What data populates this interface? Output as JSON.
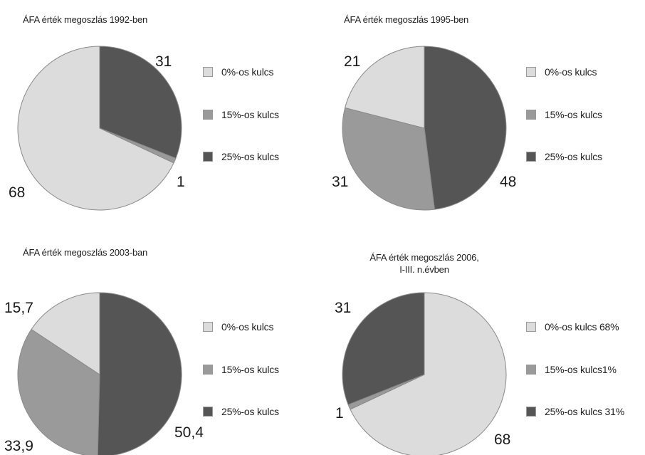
{
  "colors": {
    "zero": "#dcdcdc",
    "fifteen": "#9a9a9a",
    "twentyfive": "#555555",
    "stroke": "#8a8a8a"
  },
  "chart_data": [
    {
      "type": "pie",
      "title": "ÁFA érték megoszlás 1992-ben",
      "title_lines": [
        "ÁFA érték megoszlás 1992-ben"
      ],
      "categories": [
        "0%-os kulcs",
        "15%-os kulcs",
        "25%-os kulcs"
      ],
      "values": [
        68,
        1,
        31
      ],
      "data_labels": [
        "68",
        "1",
        "31"
      ],
      "legend": [
        "0%-os kulcs",
        "15%-os kulcs",
        "25%-os kulcs"
      ],
      "legend_position": "right"
    },
    {
      "type": "pie",
      "title": "ÁFA érték megoszlás 1995-ben",
      "title_lines": [
        "ÁFA érték megoszlás 1995-ben"
      ],
      "categories": [
        "0%-os kulcs",
        "15%-os kulcs",
        "25%-os kulcs"
      ],
      "values": [
        21,
        31,
        48
      ],
      "data_labels": [
        "21",
        "31",
        "48"
      ],
      "legend": [
        "0%-os kulcs",
        "15%-os kulcs",
        "25%-os kulcs"
      ],
      "legend_position": "right"
    },
    {
      "type": "pie",
      "title": "ÁFA érték megoszlás 2003-ban",
      "title_lines": [
        "ÁFA érték megoszlás 2003-ban"
      ],
      "categories": [
        "0%-os kulcs",
        "15%-os kulcs",
        "25%-os kulcs"
      ],
      "values": [
        15.7,
        33.9,
        50.4
      ],
      "data_labels": [
        "15,7",
        "33,9",
        "50,4"
      ],
      "legend": [
        "0%-os kulcs",
        "15%-os kulcs",
        "25%-os kulcs"
      ],
      "legend_position": "right"
    },
    {
      "type": "pie",
      "title": "ÁFA érték megoszlás 2006, I-III. n.évben",
      "title_lines": [
        "ÁFA érték megoszlás 2006,",
        "I-III. n.évben"
      ],
      "categories": [
        "0%-os kulcs",
        "15%-os kulcs",
        "25%-os kulcs"
      ],
      "values": [
        68,
        1,
        31
      ],
      "data_labels": [
        "68",
        "1",
        "31"
      ],
      "legend": [
        "0%-os kulcs 68%",
        "15%-os kulcs1%",
        "25%-os kulcs 31%"
      ],
      "legend_position": "right"
    }
  ]
}
